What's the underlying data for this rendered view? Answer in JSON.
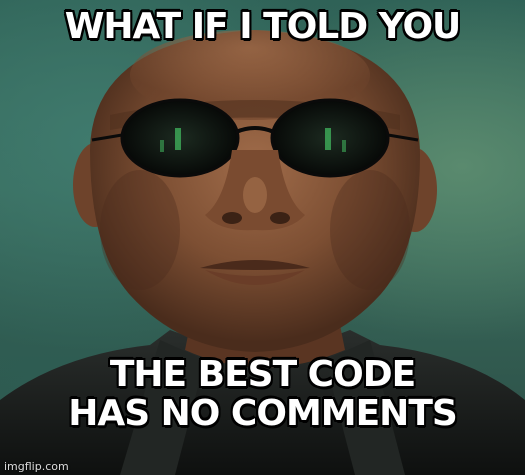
{
  "meme": {
    "top_text": "WHAT IF I TOLD YOU",
    "bottom_line_1": "THE BEST CODE",
    "bottom_line_2": "HAS NO COMMENTS",
    "watermark": "imgflip.com"
  },
  "colors": {
    "background": "#2f6257",
    "skin": "#8a5a3c",
    "skin_shadow": "#4e2f1e",
    "lens": "#0c0f0d",
    "lens_reflection": "#3fae5a",
    "coat": "#1a1d1c",
    "caption_text": "#ffffff",
    "caption_outline": "#000000"
  }
}
